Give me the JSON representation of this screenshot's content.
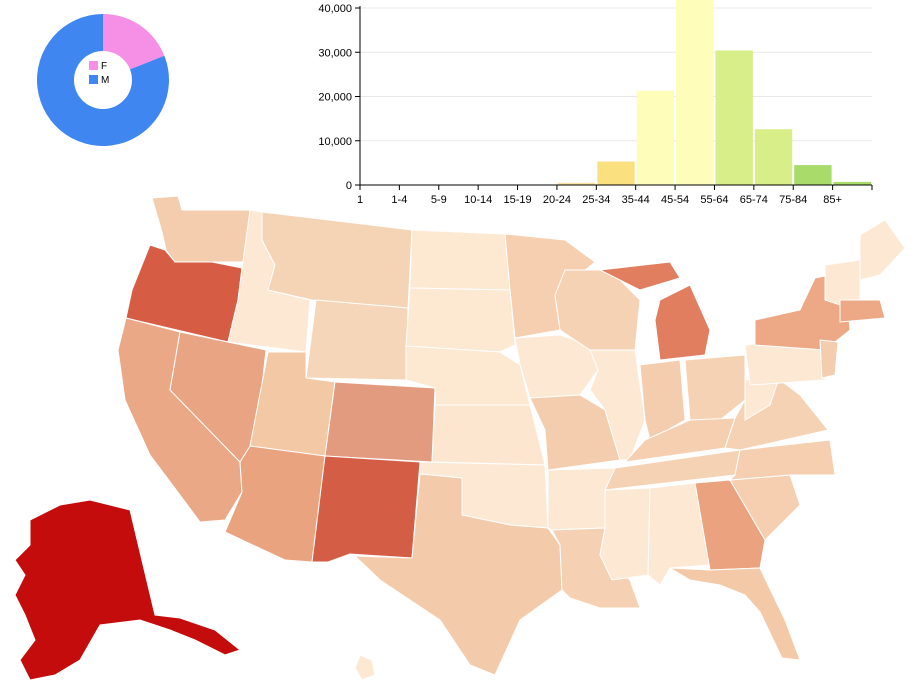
{
  "colors": {
    "female": "#f590e6",
    "male": "#3f86f0",
    "axis": "#000000",
    "grid": "#e8e8e8"
  },
  "donut": {
    "legend": [
      {
        "label": "F",
        "color": "#f590e6"
      },
      {
        "label": "M",
        "color": "#3f86f0"
      }
    ]
  },
  "chart_data": [
    {
      "type": "pie",
      "categories": [
        "F",
        "M"
      ],
      "values": [
        19,
        81
      ],
      "legend_position": "center"
    },
    {
      "type": "bar",
      "categories": [
        "1",
        "1-4",
        "5-9",
        "10-14",
        "15-19",
        "20-24",
        "25-34",
        "35-44",
        "45-54",
        "55-64",
        "65-74",
        "75-84",
        "85+"
      ],
      "values": [
        0,
        0,
        0,
        0,
        0,
        500,
        5300,
        21300,
        42000,
        30400,
        12600,
        4500,
        700
      ],
      "bar_colors": [
        "#ffffff",
        "#ffffff",
        "#ffffff",
        "#ffffff",
        "#ffffff",
        "#fbe2a0",
        "#fbe080",
        "#fefdba",
        "#fefdba",
        "#d8ee88",
        "#d8ee88",
        "#a8db6a",
        "#a8db6a"
      ],
      "yticks": [
        "0",
        "10,000",
        "20,000",
        "30,000",
        "40,000"
      ],
      "ylim": [
        0,
        40000
      ],
      "grid": true
    },
    {
      "type": "map",
      "regions": [
        {
          "name": "WA",
          "color": "#f4cdae"
        },
        {
          "name": "OR",
          "color": "#d65d43"
        },
        {
          "name": "CA",
          "color": "#eaa886"
        },
        {
          "name": "ID",
          "color": "#fde8d4"
        },
        {
          "name": "NV",
          "color": "#e9a483"
        },
        {
          "name": "MT",
          "color": "#f5d3b5"
        },
        {
          "name": "WY",
          "color": "#f6d6b9"
        },
        {
          "name": "UT",
          "color": "#f2c8a5"
        },
        {
          "name": "AZ",
          "color": "#e9a47f"
        },
        {
          "name": "CO",
          "color": "#e39b80"
        },
        {
          "name": "NM",
          "color": "#d35e45"
        },
        {
          "name": "ND",
          "color": "#fde8d2"
        },
        {
          "name": "SD",
          "color": "#fde8d2"
        },
        {
          "name": "NE",
          "color": "#fde8d2"
        },
        {
          "name": "KS",
          "color": "#fde6d0"
        },
        {
          "name": "OK",
          "color": "#fde8d4"
        },
        {
          "name": "TX",
          "color": "#f4cbaa"
        },
        {
          "name": "MN",
          "color": "#f5cfb0"
        },
        {
          "name": "IA",
          "color": "#fde8d4"
        },
        {
          "name": "MO",
          "color": "#f4cdae"
        },
        {
          "name": "AR",
          "color": "#fde8d4"
        },
        {
          "name": "LA",
          "color": "#f6d0b2"
        },
        {
          "name": "WI",
          "color": "#f5d2b4"
        },
        {
          "name": "IL",
          "color": "#fde8d4"
        },
        {
          "name": "MI",
          "color": "#e07e5f"
        },
        {
          "name": "IN",
          "color": "#f4cdae"
        },
        {
          "name": "OH",
          "color": "#f5d2b4"
        },
        {
          "name": "KY",
          "color": "#f5cfb0"
        },
        {
          "name": "TN",
          "color": "#f5d2b4"
        },
        {
          "name": "MS",
          "color": "#fde8d4"
        },
        {
          "name": "AL",
          "color": "#fde8d4"
        },
        {
          "name": "GA",
          "color": "#eaa27f"
        },
        {
          "name": "FL",
          "color": "#f4c9a7"
        },
        {
          "name": "SC",
          "color": "#f5cfb0"
        },
        {
          "name": "NC",
          "color": "#f5cfb0"
        },
        {
          "name": "VA",
          "color": "#f6d2b4"
        },
        {
          "name": "WV",
          "color": "#fde8d4"
        },
        {
          "name": "PA",
          "color": "#fde8d4"
        },
        {
          "name": "NY",
          "color": "#eda985"
        },
        {
          "name": "ME",
          "color": "#fde8d4"
        },
        {
          "name": "NH-VT",
          "color": "#fde8d4"
        },
        {
          "name": "MA",
          "color": "#eda985"
        },
        {
          "name": "NJ",
          "color": "#f4cdae"
        },
        {
          "name": "AK",
          "color": "#c40c0c"
        },
        {
          "name": "HI",
          "color": "#fde8d4"
        }
      ]
    }
  ]
}
